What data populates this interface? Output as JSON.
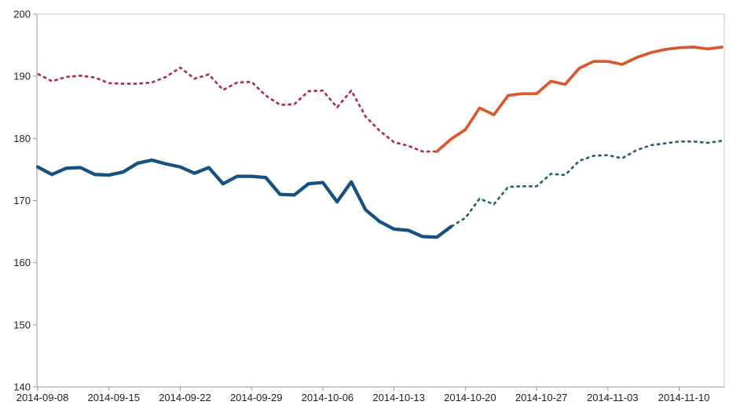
{
  "chart_data": {
    "type": "line",
    "title": "",
    "xlabel": "",
    "ylabel": "",
    "ylim": [
      140,
      200
    ],
    "y_ticks": [
      140,
      150,
      160,
      170,
      180,
      190,
      200
    ],
    "x_tick_labels": [
      "2014-09-08",
      "2014-09-15",
      "2014-09-22",
      "2014-09-29",
      "2014-10-06",
      "2014-10-13",
      "2014-10-20",
      "2014-10-27",
      "2014-11-03",
      "2014-11-10"
    ],
    "x_points_per_tick": 5,
    "n_points": 49,
    "grid": false,
    "legend": "none",
    "plot_background": "#ffffff",
    "axis_color": "#9a9a9a",
    "border_color": "#c8c8c8",
    "series": [
      {
        "name": "upper-history-dotted",
        "color": "#B12A43",
        "style": "dotted",
        "width": 2.6,
        "start_index": 0,
        "values": [
          190.4,
          189.2,
          189.9,
          190.1,
          189.8,
          188.9,
          188.8,
          188.8,
          189.0,
          189.9,
          191.4,
          189.6,
          190.3,
          187.8,
          189.0,
          189.1,
          186.9,
          185.4,
          185.5,
          187.6,
          187.7,
          185.0,
          187.7,
          183.5,
          181.2,
          179.4,
          178.8,
          177.9,
          177.9
        ]
      },
      {
        "name": "upper-forecast-solid",
        "color": "#D9582E",
        "style": "solid",
        "width": 3.7,
        "start_index": 28,
        "values": [
          177.9,
          179.9,
          181.4,
          184.9,
          183.8,
          186.9,
          187.2,
          187.2,
          189.2,
          188.7,
          191.3,
          192.4,
          192.4,
          191.9,
          193.0,
          193.8,
          194.3,
          194.6,
          194.7,
          194.4,
          194.7
        ]
      },
      {
        "name": "lower-history-solid",
        "color": "#165181",
        "style": "solid",
        "width": 4.3,
        "start_index": 0,
        "values": [
          175.4,
          174.2,
          175.2,
          175.3,
          174.2,
          174.1,
          174.6,
          176.0,
          176.5,
          175.9,
          175.4,
          174.4,
          175.3,
          172.7,
          173.9,
          173.9,
          173.7,
          171.0,
          170.9,
          172.7,
          172.9,
          169.8,
          173.0,
          168.5,
          166.6,
          165.4,
          165.2,
          164.2,
          164.1,
          165.8
        ]
      },
      {
        "name": "lower-forecast-dotted",
        "color": "#25606E",
        "style": "dotted",
        "width": 2.6,
        "start_index": 29,
        "values": [
          165.8,
          167.2,
          170.3,
          169.4,
          172.2,
          172.3,
          172.3,
          174.3,
          174.1,
          176.4,
          177.2,
          177.3,
          176.8,
          178.1,
          178.9,
          179.2,
          179.5,
          179.5,
          179.3,
          179.6
        ]
      }
    ]
  }
}
